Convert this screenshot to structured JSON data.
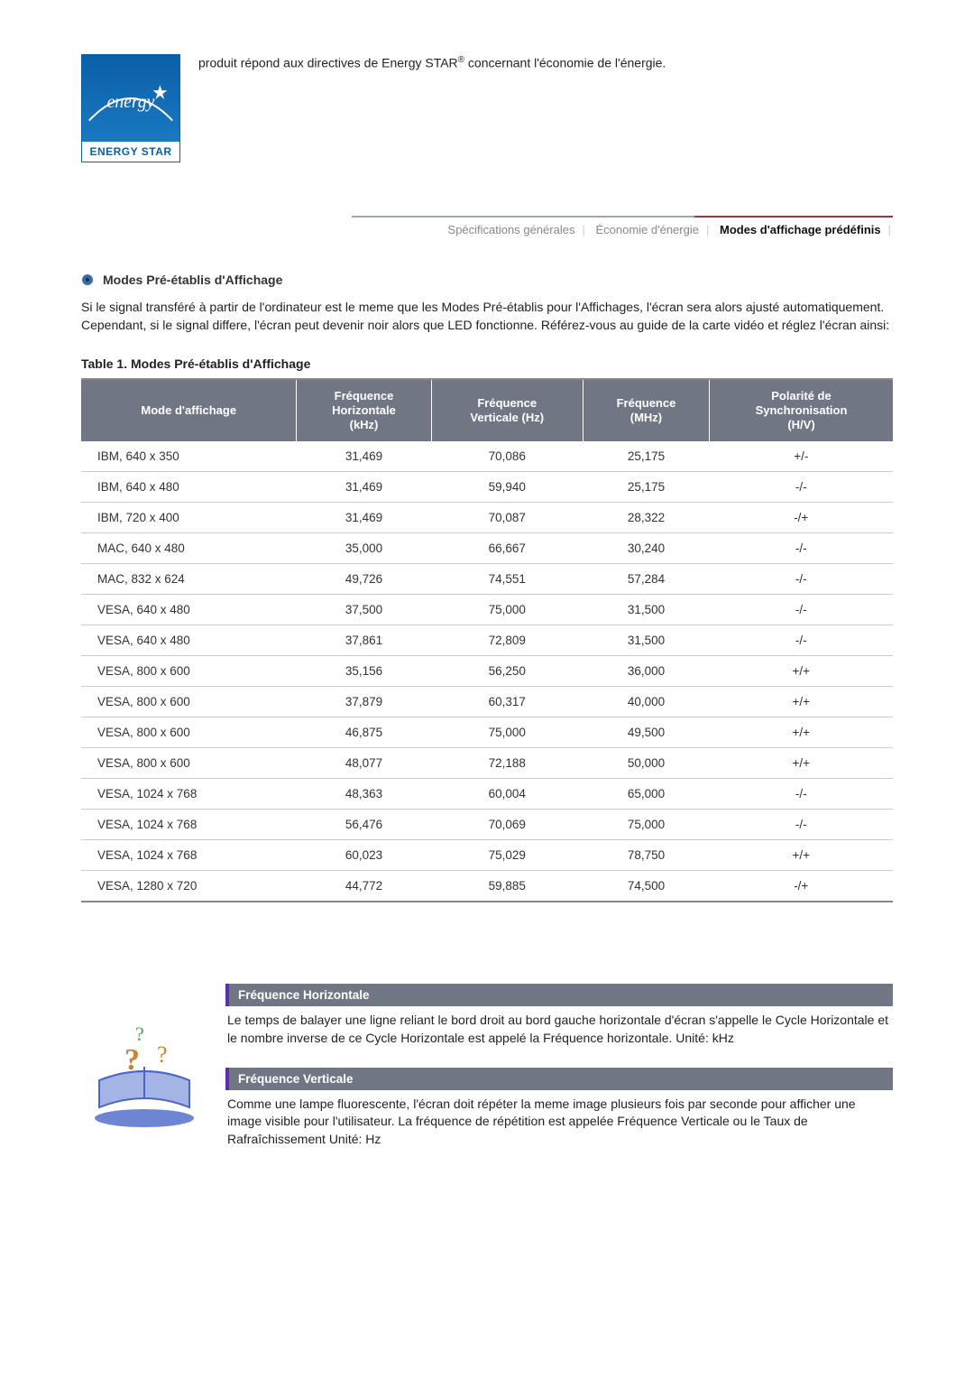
{
  "top": {
    "logo_label": "ENERGY STAR",
    "text_before_mark": "produit répond aux directives de Energy STAR",
    "registered_mark": "®",
    "text_after_mark": " concernant l'économie de l'énergie."
  },
  "breadcrumb": {
    "items": [
      "Spécifications générales",
      "Économie d'énergie",
      "Modes d'affichage prédéfinis"
    ],
    "active_index": 2,
    "underline_gray_color": "#9aa0a8",
    "underline_red_color": "#a03028"
  },
  "section": {
    "title": "Modes Pré-établis d'Affichage",
    "desc": "Si le signal transféré à partir de l'ordinateur est le meme que les Modes Pré-établis pour l'Affichages, l'écran sera alors ajusté automatiquement. Cependant, si le signal differe, l'écran peut devenir noir alors que LED fonctionne. Référez-vous au guide de la carte vidéo et réglez l'écran ainsi:"
  },
  "table": {
    "caption": "Table 1. Modes Pré-établis d'Affichage",
    "header_bg": "#707684",
    "header_fg": "#ffffff",
    "columns": [
      "Mode d'affichage",
      "Fréquence Horizontale (kHz)",
      "Fréquence Verticale (Hz)",
      "Fréquence (MHz)",
      "Polarité de Synchro­nisation (H/V)"
    ],
    "columns_html": [
      "Mode d'affichage",
      "Fréquence<br>Horizontale<br>(kHz)",
      "Fréquence<br>Verticale (Hz)",
      "Fréquence<br>(MHz)",
      "Polarité de<br>Synchronisation<br>(H/V)"
    ],
    "rows": [
      [
        "IBM, 640 x 350",
        "31,469",
        "70,086",
        "25,175",
        "+/-"
      ],
      [
        "IBM, 640 x 480",
        "31,469",
        "59,940",
        "25,175",
        "-/-"
      ],
      [
        "IBM, 720 x 400",
        "31,469",
        "70,087",
        "28,322",
        "-/+"
      ],
      [
        "MAC, 640 x 480",
        "35,000",
        "66,667",
        "30,240",
        "-/-"
      ],
      [
        "MAC, 832 x 624",
        "49,726",
        "74,551",
        "57,284",
        "-/-"
      ],
      [
        "VESA, 640 x 480",
        "37,500",
        "75,000",
        "31,500",
        "-/-"
      ],
      [
        "VESA, 640 x 480",
        "37,861",
        "72,809",
        "31,500",
        "-/-"
      ],
      [
        "VESA, 800 x 600",
        "35,156",
        "56,250",
        "36,000",
        "+/+"
      ],
      [
        "VESA, 800 x 600",
        "37,879",
        "60,317",
        "40,000",
        "+/+"
      ],
      [
        "VESA, 800 x 600",
        "46,875",
        "75,000",
        "49,500",
        "+/+"
      ],
      [
        "VESA, 800 x 600",
        "48,077",
        "72,188",
        "50,000",
        "+/+"
      ],
      [
        "VESA, 1024 x 768",
        "48,363",
        "60,004",
        "65,000",
        "-/-"
      ],
      [
        "VESA, 1024 x 768",
        "56,476",
        "70,069",
        "75,000",
        "-/-"
      ],
      [
        "VESA, 1024 x 768",
        "60,023",
        "75,029",
        "78,750",
        "+/+"
      ],
      [
        "VESA, 1280 x 720",
        "44,772",
        "59,885",
        "74,500",
        "-/+"
      ]
    ]
  },
  "defs": {
    "h": {
      "title": "Fréquence Horizontale",
      "body": "Le temps de balayer une ligne reliant le bord droit au bord gauche horizontale d'écran s'appelle le Cycle Horizontale et le nombre inverse de ce Cycle Horizontale est appelé la Fréquence horizontale. Unité: kHz"
    },
    "v": {
      "title": "Fréquence Verticale",
      "body": "Comme une lampe fluorescente, l'écran doit répéter la meme image plusieurs fois par seconde pour afficher une image visible pour l'utilisateur. La fréquence de répétition est appelée Fréquence Verticale ou le Taux de Rafraîchissement Unité: Hz"
    }
  },
  "colors": {
    "logo_blue": "#0b66ad",
    "accent_purple": "#5d2db0",
    "row_border": "#cccccc"
  }
}
